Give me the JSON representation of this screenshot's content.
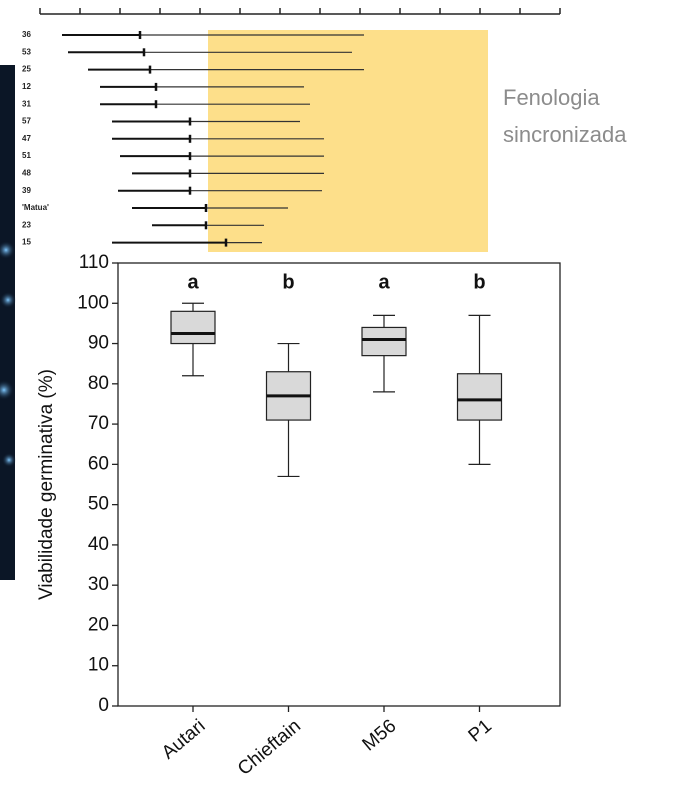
{
  "chart_data": [
    {
      "type": "range",
      "categories": [
        "36",
        "53",
        "25",
        "12",
        "31",
        "57",
        "47",
        "51",
        "48",
        "39",
        "'Matua'",
        "23",
        "15"
      ],
      "start": [
        0.55,
        0.7,
        1.2,
        1.5,
        1.5,
        1.8,
        1.8,
        2.0,
        2.3,
        1.95,
        2.3,
        2.8,
        1.8
      ],
      "end": [
        8.1,
        7.8,
        8.1,
        6.6,
        6.75,
        6.5,
        7.1,
        7.1,
        7.1,
        7.05,
        6.2,
        5.6,
        5.55
      ],
      "mark": [
        2.5,
        2.6,
        2.75,
        2.9,
        2.9,
        3.75,
        3.75,
        3.75,
        3.75,
        3.75,
        4.15,
        4.15,
        4.65
      ],
      "xlim": [
        0,
        13
      ],
      "xticks": [
        0,
        1,
        2,
        3,
        4,
        5,
        6,
        7,
        8,
        9,
        10,
        11,
        12,
        13
      ],
      "highlight": [
        4.2,
        11.2
      ],
      "highlight_color": "#fddf8a",
      "annotation": [
        "Fenologia",
        "sincronizada"
      ],
      "annotation_color": "#8c8c8c"
    },
    {
      "type": "box",
      "categories": [
        "Autari",
        "Chieftain",
        "M56",
        "P1"
      ],
      "whisker_low": [
        82,
        57,
        78,
        60
      ],
      "q1": [
        90,
        71,
        87,
        71
      ],
      "median": [
        92.5,
        77,
        91,
        76
      ],
      "q3": [
        98,
        83,
        94,
        82.5
      ],
      "whisker_high": [
        100,
        90,
        97,
        97
      ],
      "letters": [
        "a",
        "b",
        "a",
        "b"
      ],
      "color": "#d9d9d9",
      "ylabel": "Viabilidade germinativa (%)",
      "ylim": [
        0,
        110
      ],
      "yticks": [
        0,
        10,
        20,
        30,
        40,
        50,
        60,
        70,
        80,
        90,
        100,
        110
      ]
    }
  ]
}
